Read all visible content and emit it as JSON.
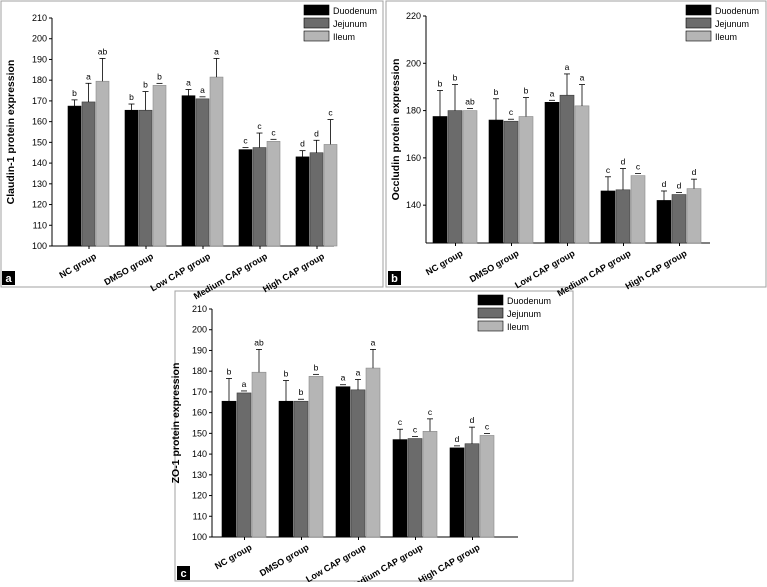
{
  "colors": {
    "duodenum": "#000000",
    "jejunum": "#6b6b6b",
    "ileum": "#b5b5b5",
    "frame": "#a0a0a0",
    "panel_label_bg": "#000000"
  },
  "chart_data": [
    {
      "type": "bar",
      "panel_label": "a",
      "ylabel": "Claudin-1 protein expression",
      "ylim": [
        100,
        210
      ],
      "yticks": [
        "100",
        "110",
        "120",
        "130",
        "140",
        "150",
        "160",
        "170",
        "180",
        "190",
        "200",
        "210"
      ],
      "categories": [
        "NC group",
        "DMSO group",
        "Low CAP group",
        "Medium CAP group",
        "High CAP group"
      ],
      "legend": [
        "Duodenum",
        "Jejunum",
        "Ileum"
      ],
      "series": [
        {
          "name": "Duodenum",
          "values": [
            167.5,
            165.5,
            172.5,
            146.5,
            143.0
          ],
          "errors": [
            3,
            3,
            3,
            0,
            3
          ],
          "labels": [
            "b",
            "b",
            "a",
            "c",
            "d"
          ]
        },
        {
          "name": "Jejunum",
          "values": [
            169.5,
            165.5,
            171.0,
            147.5,
            145.0
          ],
          "errors": [
            9,
            9,
            0,
            7,
            6
          ],
          "labels": [
            "a",
            "b",
            "a",
            "c",
            "d"
          ]
        },
        {
          "name": "Ileum",
          "values": [
            179.5,
            177.5,
            181.5,
            150.5,
            149.0
          ],
          "errors": [
            11,
            0,
            9,
            0,
            12
          ],
          "labels": [
            "ab",
            "b",
            "a",
            "c",
            "c"
          ]
        }
      ]
    },
    {
      "type": "bar",
      "panel_label": "b",
      "ylabel": "Occludin protein expression",
      "ylim": [
        124,
        220
      ],
      "yticks": [
        "140",
        "160",
        "180",
        "200",
        "220"
      ],
      "categories": [
        "NC group",
        "DMSO group",
        "Low CAP group",
        "Medium CAP group",
        "High CAP group"
      ],
      "legend": [
        "Duodenum",
        "Jejunum",
        "Ileum"
      ],
      "series": [
        {
          "name": "Duodenum",
          "values": [
            177.5,
            176.0,
            183.5,
            146.0,
            142.0
          ],
          "errors": [
            11,
            9,
            0,
            6,
            4
          ],
          "labels": [
            "b",
            "b",
            "a",
            "c",
            "d"
          ]
        },
        {
          "name": "Jejunum",
          "values": [
            180.0,
            175.5,
            186.5,
            146.5,
            144.5
          ],
          "errors": [
            11,
            0,
            9,
            9,
            0
          ],
          "labels": [
            "b",
            "c",
            "a",
            "d",
            "d"
          ]
        },
        {
          "name": "Ileum",
          "values": [
            180.0,
            177.5,
            182.0,
            152.5,
            147.0
          ],
          "errors": [
            0,
            8,
            9,
            0,
            4
          ],
          "labels": [
            "ab",
            "b",
            "a",
            "c",
            "d"
          ]
        }
      ]
    },
    {
      "type": "bar",
      "panel_label": "c",
      "ylabel": "ZO-1 protein expression",
      "ylim": [
        100,
        210
      ],
      "yticks": [
        "100",
        "110",
        "120",
        "130",
        "140",
        "150",
        "160",
        "170",
        "180",
        "190",
        "200",
        "210"
      ],
      "categories": [
        "NC group",
        "DMSO group",
        "Low CAP group",
        "Medium CAP group",
        "High CAP group"
      ],
      "legend": [
        "Duodenum",
        "Jejunum",
        "Ileum"
      ],
      "series": [
        {
          "name": "Duodenum",
          "values": [
            165.5,
            165.5,
            172.5,
            147.0,
            143.0
          ],
          "errors": [
            11,
            10,
            0,
            5,
            0
          ],
          "labels": [
            "b",
            "b",
            "a",
            "c",
            "d"
          ]
        },
        {
          "name": "Jejunum",
          "values": [
            169.5,
            165.5,
            171.0,
            147.5,
            145.0
          ],
          "errors": [
            0,
            0,
            5,
            0,
            8
          ],
          "labels": [
            "a",
            "b",
            "a",
            "c",
            "d"
          ]
        },
        {
          "name": "Ileum",
          "values": [
            179.5,
            177.5,
            181.5,
            151.0,
            149.0
          ],
          "errors": [
            11,
            0,
            9,
            6,
            0
          ],
          "labels": [
            "ab",
            "b",
            "a",
            "c",
            "c"
          ]
        }
      ]
    }
  ]
}
